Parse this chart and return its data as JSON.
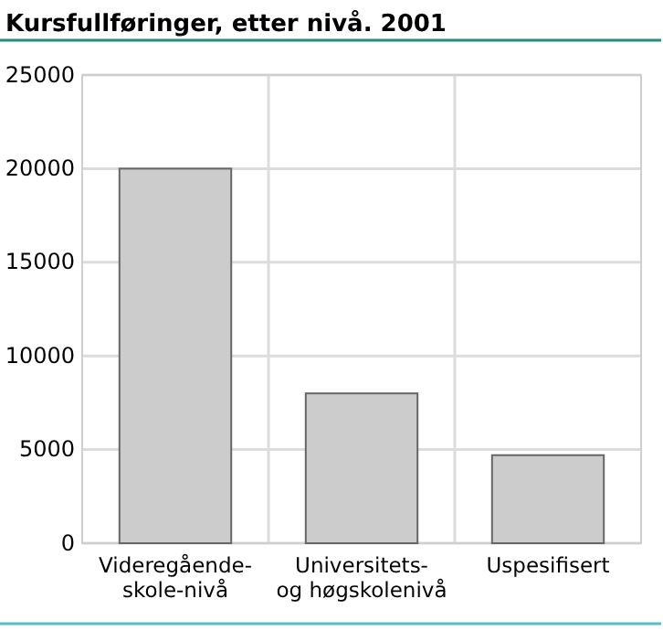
{
  "chart_data": {
    "type": "bar",
    "title": "Kursfullføringer, etter nivå. 2001",
    "categories": [
      "Videregående-skole-nivå",
      "Universitets- og høgskolenivå",
      "Uspesifisert"
    ],
    "values": [
      20000,
      8000,
      4700
    ],
    "color": "#cccccc",
    "ylim": [
      0,
      25000
    ],
    "yticks": [
      0,
      5000,
      10000,
      15000,
      20000,
      25000
    ],
    "grid": true
  }
}
